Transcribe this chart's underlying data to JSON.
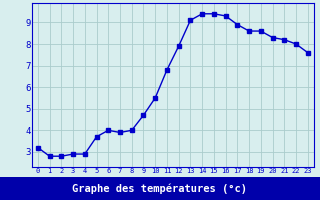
{
  "x": [
    0,
    1,
    2,
    3,
    4,
    5,
    6,
    7,
    8,
    9,
    10,
    11,
    12,
    13,
    14,
    15,
    16,
    17,
    18,
    19,
    20,
    21,
    22,
    23
  ],
  "y": [
    3.2,
    2.8,
    2.8,
    2.9,
    2.9,
    3.7,
    4.0,
    3.9,
    4.0,
    4.7,
    5.5,
    6.8,
    7.9,
    9.1,
    9.4,
    9.4,
    9.3,
    8.9,
    8.6,
    8.6,
    8.3,
    8.2,
    8.0,
    7.6
  ],
  "line_color": "#0000cc",
  "marker": "s",
  "markersize": 2.5,
  "linewidth": 1.0,
  "xlabel": "Graphe des températures (°c)",
  "xlabel_fontsize": 7.5,
  "ylabel_ticks": [
    3,
    4,
    5,
    6,
    7,
    8,
    9
  ],
  "xlim": [
    -0.5,
    23.5
  ],
  "ylim": [
    2.3,
    9.9
  ],
  "background_color": "#d8eeee",
  "grid_color": "#aacccc",
  "tick_color": "#0000cc",
  "label_color": "#0000cc",
  "spine_color": "#0000cc",
  "bottom_bar_color": "#0000aa",
  "bottom_bar_text_color": "#ffffff"
}
